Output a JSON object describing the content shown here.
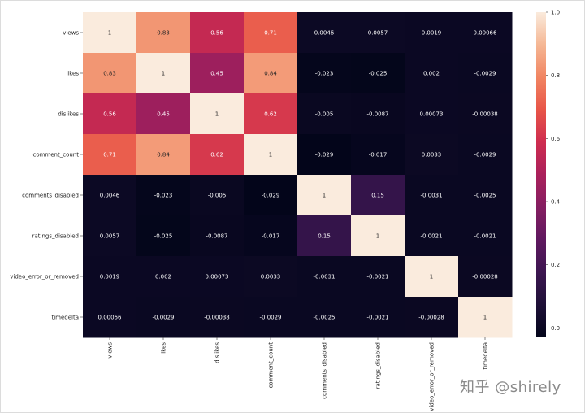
{
  "chart_data": {
    "type": "heatmap",
    "labels": [
      "views",
      "likes",
      "dislikes",
      "comment_count",
      "comments_disabled",
      "ratings_disabled",
      "video_error_or_removed",
      "timedelta"
    ],
    "matrix": [
      [
        "1",
        "0.83",
        "0.56",
        "0.71",
        "0.0046",
        "0.0057",
        "0.0019",
        "0.00066"
      ],
      [
        "0.83",
        "1",
        "0.45",
        "0.84",
        "-0.023",
        "-0.025",
        "0.002",
        "-0.0029"
      ],
      [
        "0.56",
        "0.45",
        "1",
        "0.62",
        "-0.005",
        "-0.0087",
        "0.00073",
        "-0.00038"
      ],
      [
        "0.71",
        "0.84",
        "0.62",
        "1",
        "-0.029",
        "-0.017",
        "0.0033",
        "-0.0029"
      ],
      [
        "0.0046",
        "-0.023",
        "-0.005",
        "-0.029",
        "1",
        "0.15",
        "-0.0031",
        "-0.0025"
      ],
      [
        "0.0057",
        "-0.025",
        "-0.0087",
        "-0.017",
        "0.15",
        "1",
        "-0.0021",
        "-0.0021"
      ],
      [
        "0.0019",
        "0.002",
        "0.00073",
        "0.0033",
        "-0.0031",
        "-0.0021",
        "1",
        "-0.00028"
      ],
      [
        "0.00066",
        "-0.0029",
        "-0.00038",
        "-0.0029",
        "-0.0025",
        "-0.0021",
        "-0.00028",
        "1"
      ]
    ],
    "colorbar": {
      "ticks": [
        "0.0",
        "0.2",
        "0.4",
        "0.6",
        "0.8",
        "1.0"
      ],
      "range": [
        -0.03,
        1.0
      ],
      "colormap": "rocket"
    }
  },
  "watermark": "知乎 @shirely"
}
